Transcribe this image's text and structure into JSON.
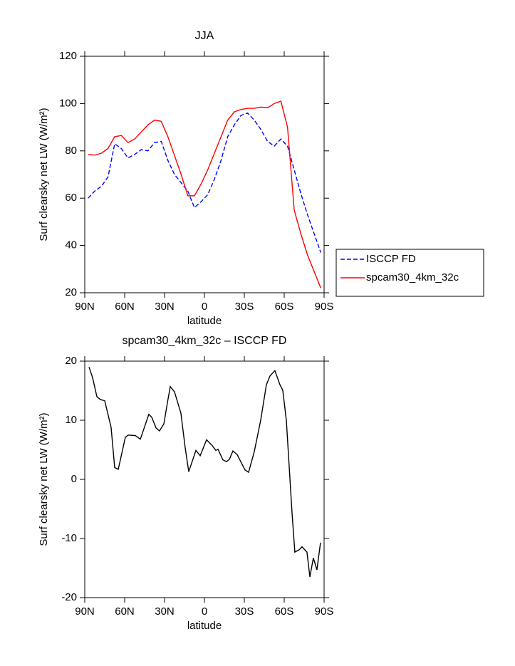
{
  "chart_data": [
    {
      "type": "line",
      "title": "JJA",
      "x_label": "latitude",
      "y_label": "Surf clearsky net LW (W/m²)",
      "x": [
        87.5,
        82.5,
        77.5,
        72.5,
        67.5,
        62.5,
        57.5,
        52.5,
        47.5,
        42.5,
        37.5,
        32.5,
        27.5,
        22.5,
        17.5,
        12.5,
        7.5,
        2.5,
        -2.5,
        -7.5,
        -12.5,
        -17.5,
        -22.5,
        -27.5,
        -32.5,
        -37.5,
        -42.5,
        -47.5,
        -52.5,
        -57.5,
        -62.5,
        -67.5,
        -72.5,
        -77.5,
        -82.5,
        -87.5
      ],
      "series": [
        {
          "name": "ISCCP FD",
          "color": "#0000ff",
          "linestyle": "dashed",
          "values": [
            60,
            63,
            65,
            69,
            83,
            81,
            77,
            78.5,
            80.5,
            80,
            83.5,
            84,
            76,
            70,
            66.5,
            63,
            56,
            58.5,
            61.5,
            68,
            76,
            86,
            91,
            95,
            96,
            93,
            89,
            84,
            82,
            85,
            82,
            72,
            62,
            53,
            45,
            37
          ]
        },
        {
          "name": "spcam30_4km_32c",
          "color": "#ff0000",
          "linestyle": "solid",
          "values": [
            78.5,
            78.2,
            79,
            81,
            86,
            86.5,
            83.5,
            85,
            88,
            91,
            93,
            92.5,
            86,
            78,
            70,
            61,
            61,
            66,
            72,
            79,
            86,
            93,
            96.5,
            97.5,
            98,
            98,
            98.5,
            98.2,
            100,
            101,
            90,
            55,
            45,
            36,
            29,
            22
          ]
        }
      ],
      "xlim": [
        90,
        -90
      ],
      "xticks": [
        {
          "value": 90,
          "label": "90N"
        },
        {
          "value": 60,
          "label": "60N"
        },
        {
          "value": 30,
          "label": "30N"
        },
        0,
        {
          "value": -30,
          "label": "30S"
        },
        {
          "value": -60,
          "label": "60S"
        },
        {
          "value": -90,
          "label": "90S"
        }
      ],
      "ylim": [
        20,
        120
      ],
      "yticks": [
        20,
        40,
        60,
        80,
        100,
        120
      ],
      "legend": "right"
    },
    {
      "type": "line",
      "title": "spcam30_4km_32c – ISCCP FD",
      "x_label": "latitude",
      "y_label": "Surf clearsky net LW (W/m²)",
      "x": [
        86.8,
        84.1,
        80.9,
        78.2,
        75.0,
        70.2,
        67.5,
        64.8,
        59.5,
        57.3,
        51.9,
        48.2,
        44.4,
        41.8,
        39.6,
        36.4,
        33.8,
        30.5,
        27.9,
        25.7,
        22.5,
        17.7,
        14.5,
        11.8,
        6.4,
        3.2,
        -1.6,
        -5.9,
        -8.6,
        -10.2,
        -13.9,
        -16.6,
        -18.8,
        -21.4,
        -24.6,
        -27.3,
        -30.5,
        -33.2,
        -37.5,
        -42.3,
        -46.6,
        -49.3,
        -53.0,
        -56.8,
        -58.9,
        -61.6,
        -65.9,
        -68.0,
        -71.3,
        -73.4,
        -77.1,
        -79.3,
        -81.9,
        -84.6,
        -87.3
      ],
      "values": [
        19,
        17.2,
        14,
        13.5,
        13.3,
        8.8,
        2,
        1.7,
        7.1,
        7.5,
        7.4,
        6.8,
        9.3,
        11,
        10.5,
        8.7,
        8.2,
        9.4,
        12.9,
        15.7,
        14.8,
        11.2,
        5.4,
        1.3,
        4.9,
        4,
        6.7,
        5.7,
        4.9,
        5.1,
        3.3,
        3,
        3.4,
        4.8,
        4.2,
        3,
        1.6,
        1.2,
        4.7,
        10,
        16,
        17.5,
        18.4,
        16,
        15.1,
        10,
        -5.7,
        -12.3,
        -11.9,
        -11.4,
        -12.3,
        -16.5,
        -13.3,
        -15.3,
        -10.7
      ],
      "color": "#000000",
      "xlim": [
        90,
        -90
      ],
      "xticks": [
        {
          "value": 90,
          "label": "90N"
        },
        {
          "value": 60,
          "label": "60N"
        },
        {
          "value": 30,
          "label": "30N"
        },
        0,
        {
          "value": -30,
          "label": "30S"
        },
        {
          "value": -60,
          "label": "60S"
        },
        {
          "value": -90,
          "label": "90S"
        }
      ],
      "ylim": [
        -20,
        20
      ],
      "yticks": [
        -20,
        -10,
        0,
        10,
        20
      ]
    }
  ]
}
